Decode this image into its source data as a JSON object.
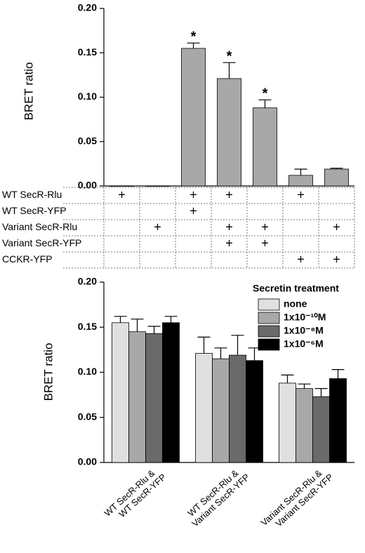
{
  "chart_data": [
    {
      "type": "bar",
      "y_label": "BRET ratio",
      "categories": [
        null,
        null,
        null,
        null,
        null,
        null,
        null
      ],
      "values": [
        0.0,
        0.0,
        0.155,
        0.121,
        0.088,
        0.012,
        0.019
      ],
      "errors": [
        null,
        null,
        0.006,
        0.018,
        0.009,
        0.007,
        0.001
      ],
      "value_annotations": [
        null,
        null,
        "*",
        "*",
        "*",
        null,
        null
      ],
      "color": "#a8a8a8",
      "ylim": [
        0,
        0.2
      ],
      "yticks": [
        {
          "value": 0,
          "label": "0.00"
        },
        {
          "value": 0.05,
          "label": "0.05"
        },
        {
          "value": 0.1,
          "label": "0.10"
        },
        {
          "value": 0.15,
          "label": "0.15"
        },
        {
          "value": 0.2,
          "label": "0.20"
        }
      ],
      "grid": false,
      "table": {
        "rows": [
          {
            "label": "WT SecR-Rlu",
            "cells": [
              "+",
              null,
              "+",
              "+",
              null,
              "+",
              null
            ]
          },
          {
            "label": "WT SecR-YFP",
            "cells": [
              null,
              null,
              "+",
              null,
              null,
              null,
              null
            ]
          },
          {
            "label": "Variant SecR-Rlu",
            "cells": [
              null,
              "+",
              null,
              "+",
              "+",
              null,
              "+"
            ]
          },
          {
            "label": "Variant SecR-YFP",
            "cells": [
              null,
              null,
              null,
              "+",
              "+",
              null,
              null
            ]
          },
          {
            "label": "CCKR-YFP",
            "cells": [
              null,
              null,
              null,
              null,
              null,
              "+",
              "+"
            ]
          }
        ]
      }
    },
    {
      "type": "bar",
      "y_label": "BRET ratio",
      "categories": [
        [
          "WT SecR-Rlu &",
          "WT SecR-YFP"
        ],
        [
          "WT SecR-Rlu &",
          "Variant SecR-YFP"
        ],
        [
          "Variant SecR-Rlu &",
          "Variant SecR-YFP"
        ]
      ],
      "legend_title": "Secretin treatment",
      "series": [
        {
          "name": "none",
          "color": "#e0e0e0",
          "values": [
            0.155,
            0.121,
            0.088
          ],
          "errors": [
            0.007,
            0.018,
            0.009
          ]
        },
        {
          "name": "1x10⁻¹⁰M",
          "color": "#a8a8a8",
          "values": [
            0.145,
            0.115,
            0.082
          ],
          "errors": [
            0.014,
            0.012,
            0.005
          ]
        },
        {
          "name": "1x10⁻⁸M",
          "color": "#6a6a6a",
          "values": [
            0.143,
            0.119,
            0.073
          ],
          "errors": [
            0.008,
            0.022,
            0.009
          ]
        },
        {
          "name": "1x10⁻⁶M",
          "color": "#000000",
          "values": [
            0.155,
            0.113,
            0.093
          ],
          "errors": [
            0.007,
            0.014,
            0.01
          ]
        }
      ],
      "ylim": [
        0,
        0.2
      ],
      "yticks": [
        {
          "value": 0,
          "label": "0.00"
        },
        {
          "value": 0.05,
          "label": "0.05"
        },
        {
          "value": 0.1,
          "label": "0.10"
        },
        {
          "value": 0.15,
          "label": "0.15"
        },
        {
          "value": 0.2,
          "label": "0.20"
        }
      ],
      "grid": false,
      "legend": "top-right"
    }
  ]
}
